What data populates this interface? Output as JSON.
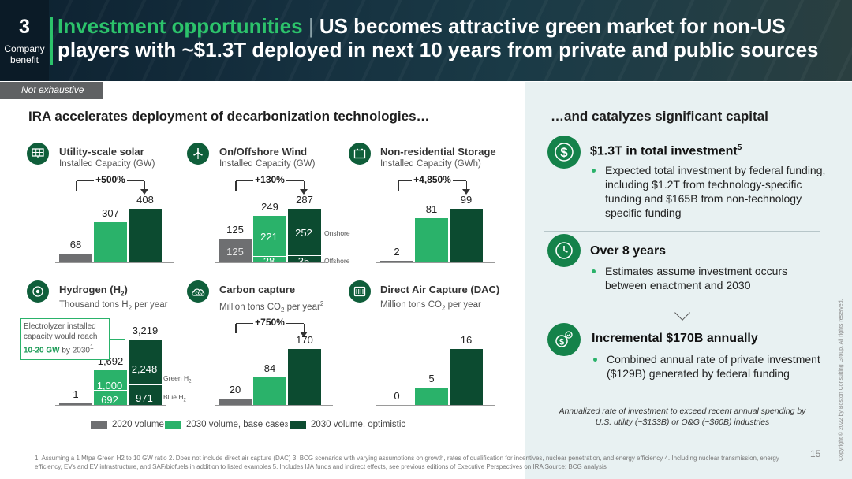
{
  "header": {
    "section_number": "3",
    "section_label_1": "Company",
    "section_label_2": "benefit",
    "title_highlight": "Investment opportunities",
    "title_separator": "|",
    "title_rest": "US becomes attractive green market for non-US players with ~$1.3T deployed in next 10 years from private and public sources"
  },
  "tag_not_exhaustive": "Not exhaustive",
  "left_heading": "IRA accelerates deployment of decarbonization technologies…",
  "right_heading": "…and catalyzes significant capital",
  "colors": {
    "v2020": "#6e6f71",
    "base": "#2ab26a",
    "optimistic": "#0c4b30",
    "accent": "#2cc36b"
  },
  "icons": {
    "solar": "solar-panel-icon",
    "wind": "wind-turbine-icon",
    "storage": "battery-storage-icon",
    "hydrogen": "hydrogen-icon",
    "carbon": "co2-cloud-icon",
    "dac": "air-capture-icon",
    "dollar": "dollar-icon",
    "clock": "clock-icon",
    "money": "money-growth-icon"
  },
  "chart_data": [
    {
      "type": "bar",
      "title": "Utility-scale solar",
      "ylabel": "Installed Capacity (GW)",
      "categories": [
        "2020 volume",
        "2030 volume, base case",
        "2030 volume, optimistic"
      ],
      "values": [
        68,
        307,
        408
      ],
      "labels": [
        "68",
        "307",
        "408"
      ],
      "growth": "+500%"
    },
    {
      "type": "bar",
      "stacked": true,
      "title": "On/Offshore Wind",
      "ylabel": "Installed Capacity (GW)",
      "categories": [
        "2020 volume",
        "2030 volume, base case",
        "2030 volume, optimistic"
      ],
      "series": [
        {
          "name": "Offshore",
          "values": [
            0,
            28,
            35
          ]
        },
        {
          "name": "Onshore",
          "values": [
            125,
            221,
            252
          ]
        }
      ],
      "totals": [
        "125",
        "249",
        "287"
      ],
      "inner_labels": {
        "c20_on": "125",
        "cb_on": "221",
        "cb_off": "28",
        "co_on": "252",
        "co_off": "35"
      },
      "series_labels": {
        "onshore": "Onshore",
        "offshore": "Offshore"
      },
      "growth": "+130%"
    },
    {
      "type": "bar",
      "title": "Non-residential Storage",
      "ylabel": "Installed Capacity (GWh)",
      "categories": [
        "2020 volume",
        "2030 volume, base case",
        "2030 volume, optimistic"
      ],
      "values": [
        2,
        81,
        99
      ],
      "labels": [
        "2",
        "81",
        "99"
      ],
      "growth": "+4,850%"
    },
    {
      "type": "bar",
      "stacked": true,
      "title": "Hydrogen (H2)",
      "ylabel": "Thousand tons H2 per year",
      "categories": [
        "2020 volume",
        "2030 volume, base case",
        "2030 volume, optimistic"
      ],
      "series": [
        {
          "name": "Blue H2",
          "values": [
            0,
            692,
            971
          ]
        },
        {
          "name": "Green H2",
          "values": [
            1,
            1000,
            2248
          ]
        }
      ],
      "totals": [
        "1",
        "1,692",
        "3,219"
      ],
      "inner_labels": {
        "cb_green": "1,000",
        "cb_blue": "692",
        "co_green": "2,248",
        "co_blue": "971"
      },
      "series_labels": {
        "green": "Green H",
        "blue": "Blue H"
      },
      "callout": {
        "line1": "Electrolyzer installed capacity would reach",
        "bold": "10-20 GW",
        "tail": "by 2030",
        "sup": "1"
      }
    },
    {
      "type": "bar",
      "title": "Carbon capture",
      "ylabel": "Million tons CO2 per year",
      "categories": [
        "2020 volume",
        "2030 volume, base case",
        "2030 volume, optimistic"
      ],
      "values": [
        20,
        84,
        170
      ],
      "labels": [
        "20",
        "84",
        "170"
      ],
      "growth": "+750%"
    },
    {
      "type": "bar",
      "title": "Direct Air Capture (DAC)",
      "ylabel": "Million tons CO2 per year",
      "categories": [
        "2020 volume",
        "2030 volume, base case",
        "2030 volume, optimistic"
      ],
      "values": [
        0,
        5,
        16
      ],
      "labels": [
        "0",
        "5",
        "16"
      ]
    }
  ],
  "legend": {
    "v2020": "2020 volume",
    "base": "2030 volume, base case",
    "base_sup": "3",
    "optimistic": "2030 volume, optimistic"
  },
  "right": {
    "item1": {
      "title": "$1.3T in total investment",
      "sup": "5",
      "body": "Expected total investment by federal funding, including $1.2T from technology-specific funding and $165B from non-technology specific funding"
    },
    "item2": {
      "title": "Over 8 years",
      "body": "Estimates assume investment occurs between enactment and 2030"
    },
    "item3": {
      "title": "Incremental $170B annually",
      "body": "Combined annual rate of private investment ($129B) generated by federal funding"
    },
    "annual_note": "Annualized rate of investment to exceed recent annual spending by U.S. utility (~$133B) or O&G (~$60B) industries"
  },
  "footnote": "1. Assuming a 1 Mtpa Green H2 to 10 GW ratio 2. Does not include direct air capture (DAC) 3. BCG scenarios with varying assumptions on growth, rates of qualification for incentives, nuclear penetration, and energy efficiency 4. Including nuclear transmission, energy efficiency, EVs and EV infrastructure, and SAF/biofuels in addition to listed examples 5. Includes IJA funds and indirect effects, see previous editions of Executive Perspectives on IRA   Source: BCG analysis",
  "page_number": "15",
  "copyright": "Copyright © 2022 by Boston Consulting Group. All rights reserved."
}
